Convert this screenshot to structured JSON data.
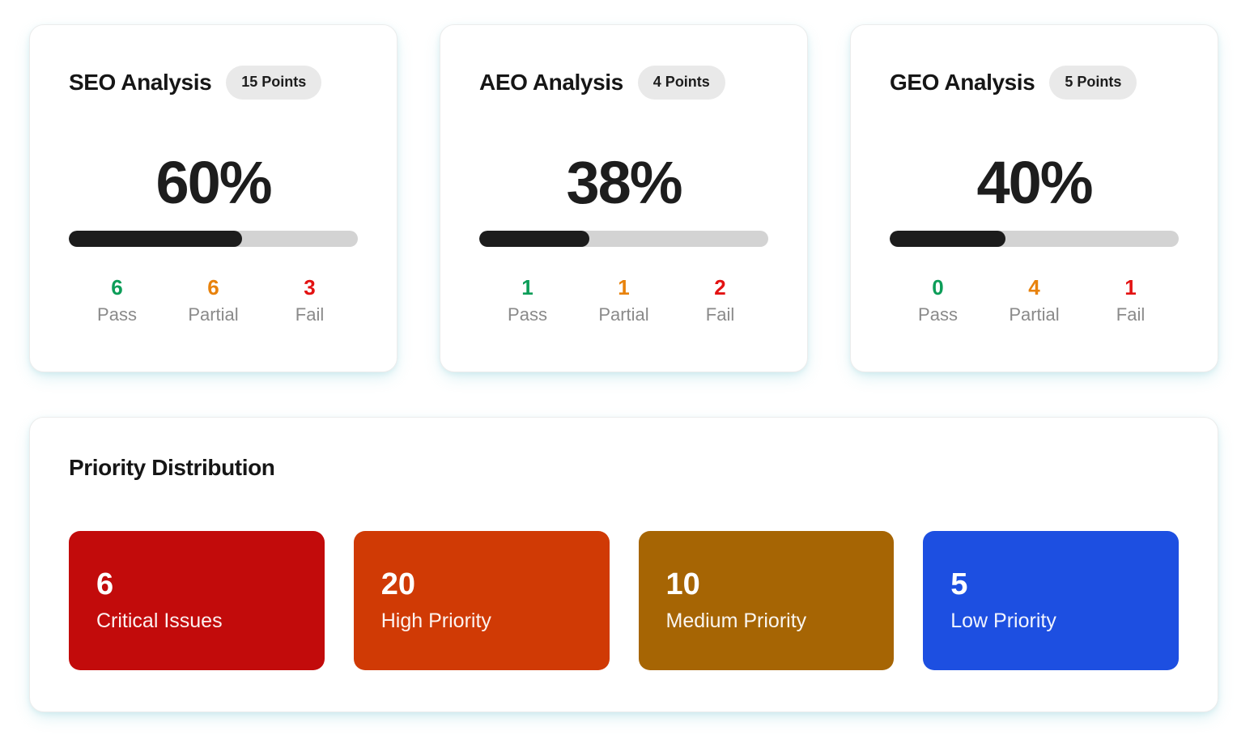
{
  "theme": {
    "progress_fill": "#1c1c1c",
    "progress_track": "#d3d3d3",
    "badge_bg": "#e9e9e9",
    "text_primary": "#161616",
    "text_muted": "#8a8a8a",
    "pass_color": "#0c9d58",
    "partial_color": "#e8820c",
    "fail_color": "#e31212"
  },
  "analysis_cards": [
    {
      "title": "SEO Analysis",
      "points_badge": "15 Points",
      "percent_label": "60%",
      "progress_percent": 60,
      "stats": [
        {
          "value": "6",
          "label": "Pass",
          "color": "#0c9d58"
        },
        {
          "value": "6",
          "label": "Partial",
          "color": "#e8820c"
        },
        {
          "value": "3",
          "label": "Fail",
          "color": "#e31212"
        }
      ]
    },
    {
      "title": "AEO Analysis",
      "points_badge": "4 Points",
      "percent_label": "38%",
      "progress_percent": 38,
      "stats": [
        {
          "value": "1",
          "label": "Pass",
          "color": "#0c9d58"
        },
        {
          "value": "1",
          "label": "Partial",
          "color": "#e8820c"
        },
        {
          "value": "2",
          "label": "Fail",
          "color": "#e31212"
        }
      ]
    },
    {
      "title": "GEO Analysis",
      "points_badge": "5 Points",
      "percent_label": "40%",
      "progress_percent": 40,
      "stats": [
        {
          "value": "0",
          "label": "Pass",
          "color": "#0c9d58"
        },
        {
          "value": "4",
          "label": "Partial",
          "color": "#e8820c"
        },
        {
          "value": "1",
          "label": "Fail",
          "color": "#e31212"
        }
      ]
    }
  ],
  "priority": {
    "title": "Priority Distribution",
    "tiles": [
      {
        "value": "6",
        "label": "Critical Issues",
        "color": "#c20b0b"
      },
      {
        "value": "20",
        "label": "High Priority",
        "color": "#d03a05"
      },
      {
        "value": "10",
        "label": "Medium Priority",
        "color": "#a66504"
      },
      {
        "value": "5",
        "label": "Low Priority",
        "color": "#1d4fe1"
      }
    ]
  }
}
